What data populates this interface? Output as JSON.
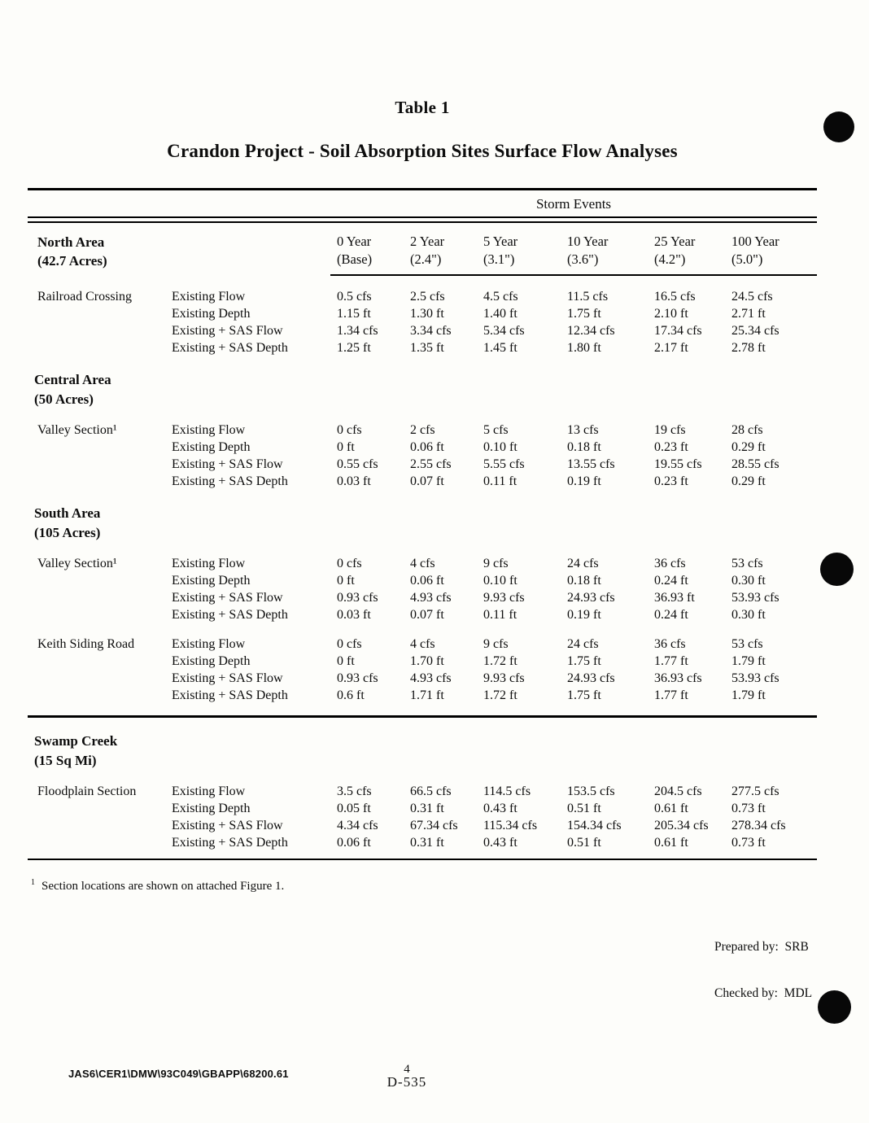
{
  "page": {
    "table_label": "Table 1",
    "title": "Crandon Project - Soil Absorption Sites Surface Flow Analyses",
    "storm_events_header": "Storm Events",
    "footnote_marker": "1",
    "footnote_text": "Section locations are shown on attached Figure 1.",
    "prepared_by": "Prepared by:  SRB",
    "checked_by": "Checked by:  MDL",
    "footer_path": "JAS6\\CER1\\DMW\\93C049\\GBAPP\\68200.61",
    "page_number": "4",
    "doc_number": "D-535"
  },
  "table": {
    "columns": [
      {
        "line1": "0 Year",
        "line2": "(Base)"
      },
      {
        "line1": "2 Year",
        "line2": "(2.4\")"
      },
      {
        "line1": "5 Year",
        "line2": "(3.1\")"
      },
      {
        "line1": "10 Year",
        "line2": "(3.6\")"
      },
      {
        "line1": "25 Year",
        "line2": "(4.2\")"
      },
      {
        "line1": "100 Year",
        "line2": "(5.0\")"
      }
    ],
    "sections": [
      {
        "area": "North Area",
        "area_sub": "(42.7 Acres)",
        "groups": [
          {
            "site": "Railroad Crossing",
            "rows": [
              {
                "metric": "Existing Flow",
                "values": [
                  "0.5 cfs",
                  "2.5 cfs",
                  "4.5 cfs",
                  "11.5 cfs",
                  "16.5 cfs",
                  "24.5 cfs"
                ]
              },
              {
                "metric": "Existing Depth",
                "values": [
                  "1.15 ft",
                  "1.30 ft",
                  "1.40 ft",
                  "1.75 ft",
                  "2.10 ft",
                  "2.71 ft"
                ]
              },
              {
                "metric": "Existing + SAS Flow",
                "values": [
                  "1.34 cfs",
                  "3.34 cfs",
                  "5.34 cfs",
                  "12.34 cfs",
                  "17.34 cfs",
                  "25.34 cfs"
                ]
              },
              {
                "metric": "Existing + SAS Depth",
                "values": [
                  "1.25 ft",
                  "1.35 ft",
                  "1.45 ft",
                  "1.80 ft",
                  "2.17 ft",
                  "2.78 ft"
                ]
              }
            ]
          }
        ]
      },
      {
        "area": "Central Area",
        "area_sub": "(50 Acres)",
        "groups": [
          {
            "site": "Valley Section¹",
            "rows": [
              {
                "metric": "Existing Flow",
                "values": [
                  "0 cfs",
                  "2 cfs",
                  "5 cfs",
                  "13 cfs",
                  "19 cfs",
                  "28 cfs"
                ]
              },
              {
                "metric": "Existing Depth",
                "values": [
                  "0 ft",
                  "0.06 ft",
                  "0.10 ft",
                  "0.18 ft",
                  "0.23 ft",
                  "0.29 ft"
                ]
              },
              {
                "metric": "Existing + SAS Flow",
                "values": [
                  "0.55 cfs",
                  "2.55 cfs",
                  "5.55 cfs",
                  "13.55 cfs",
                  "19.55 cfs",
                  "28.55 cfs"
                ]
              },
              {
                "metric": "Existing + SAS Depth",
                "values": [
                  "0.03 ft",
                  "0.07 ft",
                  "0.11 ft",
                  "0.19 ft",
                  "0.23 ft",
                  "0.29 ft"
                ]
              }
            ]
          }
        ]
      },
      {
        "area": "South Area",
        "area_sub": "(105 Acres)",
        "groups": [
          {
            "site": "Valley Section¹",
            "rows": [
              {
                "metric": "Existing Flow",
                "values": [
                  "0 cfs",
                  "4 cfs",
                  "9 cfs",
                  "24 cfs",
                  "36 cfs",
                  "53 cfs"
                ]
              },
              {
                "metric": "Existing Depth",
                "values": [
                  "0 ft",
                  "0.06 ft",
                  "0.10 ft",
                  "0.18 ft",
                  "0.24 ft",
                  "0.30 ft"
                ]
              },
              {
                "metric": "Existing + SAS Flow",
                "values": [
                  "0.93 cfs",
                  "4.93 cfs",
                  "9.93 cfs",
                  "24.93 cfs",
                  "36.93 ft",
                  "53.93 cfs"
                ]
              },
              {
                "metric": "Existing + SAS Depth",
                "values": [
                  "0.03 ft",
                  "0.07 ft",
                  "0.11 ft",
                  "0.19 ft",
                  "0.24 ft",
                  "0.30 ft"
                ]
              }
            ]
          },
          {
            "site": "Keith Siding Road",
            "rows": [
              {
                "metric": "Existing Flow",
                "values": [
                  "0 cfs",
                  "4 cfs",
                  "9 cfs",
                  "24 cfs",
                  "36 cfs",
                  "53 cfs"
                ]
              },
              {
                "metric": "Existing Depth",
                "values": [
                  "0 ft",
                  "1.70 ft",
                  "1.72 ft",
                  "1.75 ft",
                  "1.77 ft",
                  "1.79 ft"
                ]
              },
              {
                "metric": "Existing + SAS Flow",
                "values": [
                  "0.93 cfs",
                  "4.93 cfs",
                  "9.93 cfs",
                  "24.93 cfs",
                  "36.93 cfs",
                  "53.93 cfs"
                ]
              },
              {
                "metric": "Existing + SAS Depth",
                "values": [
                  "0.6 ft",
                  "1.71 ft",
                  "1.72 ft",
                  "1.75 ft",
                  "1.77 ft",
                  "1.79 ft"
                ]
              }
            ]
          }
        ]
      },
      {
        "area": "Swamp Creek",
        "area_sub": "(15 Sq Mi)",
        "heavy_rule": true,
        "groups": [
          {
            "site": "Floodplain Section",
            "rows": [
              {
                "metric": "Existing Flow",
                "values": [
                  "3.5 cfs",
                  "66.5 cfs",
                  "114.5 cfs",
                  "153.5 cfs",
                  "204.5 cfs",
                  "277.5 cfs"
                ]
              },
              {
                "metric": "Existing Depth",
                "values": [
                  "0.05 ft",
                  "0.31 ft",
                  "0.43 ft",
                  "0.51 ft",
                  "0.61 ft",
                  "0.73 ft"
                ]
              },
              {
                "metric": "Existing + SAS Flow",
                "values": [
                  "4.34 cfs",
                  "67.34 cfs",
                  "115.34 cfs",
                  "154.34 cfs",
                  "205.34 cfs",
                  "278.34 cfs"
                ]
              },
              {
                "metric": "Existing + SAS Depth",
                "values": [
                  "0.06 ft",
                  "0.31 ft",
                  "0.43 ft",
                  "0.51 ft",
                  "0.61 ft",
                  "0.73 ft"
                ]
              }
            ]
          }
        ]
      }
    ]
  }
}
